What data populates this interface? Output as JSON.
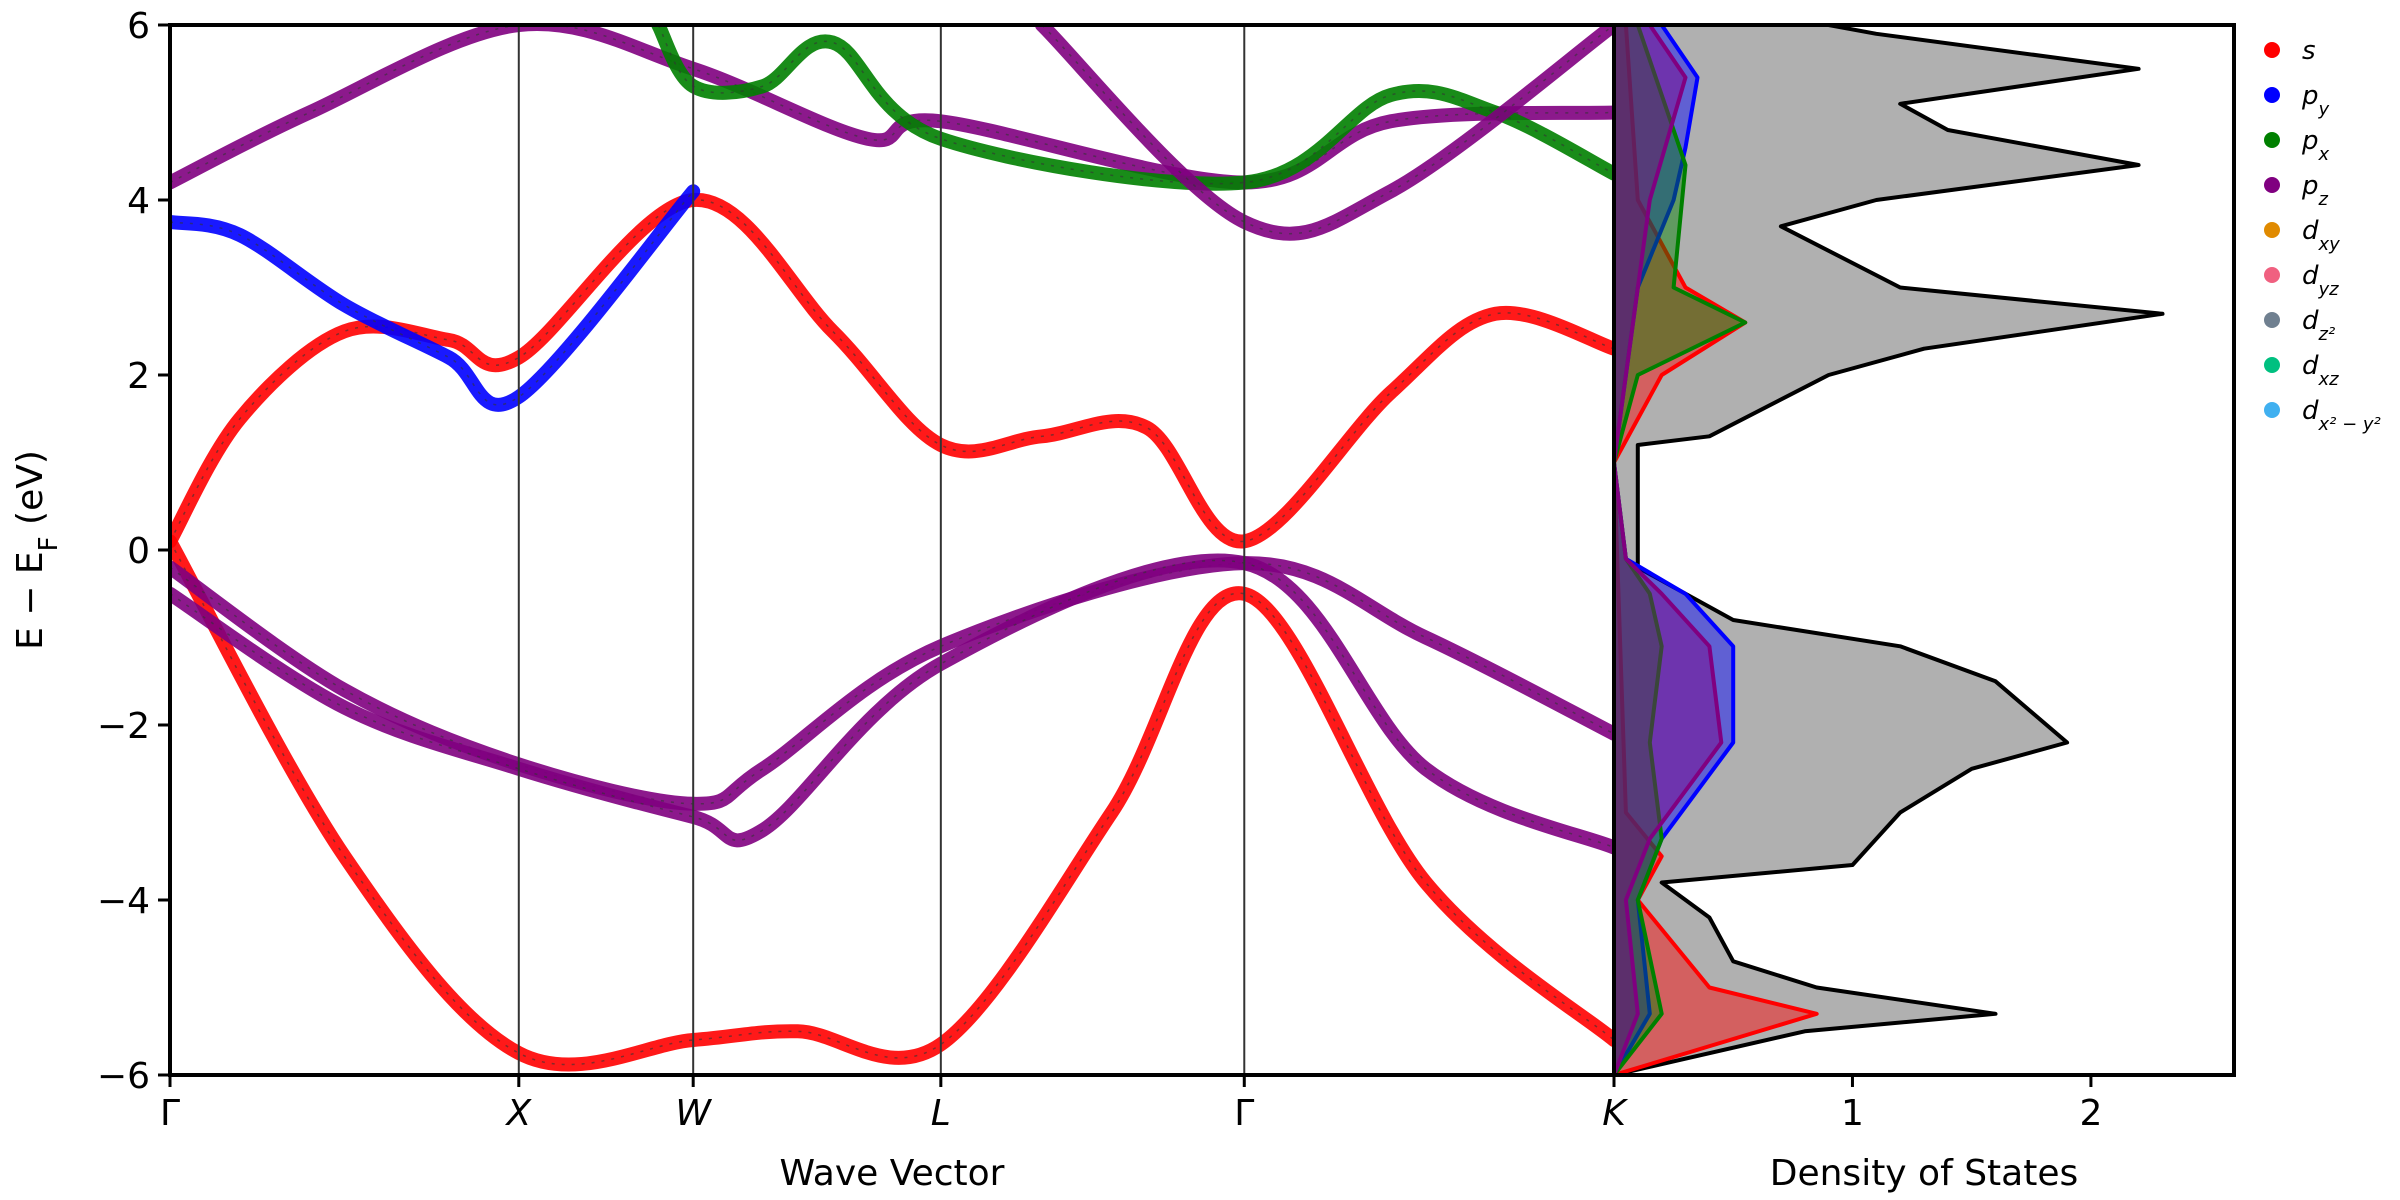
{
  "chart_data": [
    {
      "type": "line",
      "title": "",
      "xlabel": "Wave Vector",
      "ylabel": "E − E_F (eV)",
      "ylim": [
        -6,
        6
      ],
      "yticks": [
        "−6",
        "−4",
        "−2",
        "0",
        "2",
        "4",
        "6"
      ],
      "ytick_values": [
        -6,
        -4,
        -2,
        0,
        2,
        4,
        6
      ],
      "kpath_labels": [
        "Γ",
        "X",
        "W",
        "L",
        "Γ",
        "K"
      ],
      "kpath_positions": [
        0,
        1,
        1.5,
        2.21,
        3.08,
        4.14
      ],
      "xlim": [
        0,
        4.14
      ],
      "grid": false,
      "bands": [
        {
          "name": "",
          "color": "#ff0000",
          "x": [
            0,
            0.5,
            1.0,
            1.5,
            1.8,
            2.21,
            2.7,
            3.08,
            3.6,
            4.14
          ],
          "y": [
            0.1,
            -3.5,
            -5.75,
            -5.6,
            -5.5,
            -5.65,
            -3.0,
            -0.5,
            -3.8,
            -5.6
          ]
        },
        {
          "name": "",
          "color": "#ff0000",
          "x": [
            0,
            0.2,
            0.5,
            0.8,
            1.0,
            1.5,
            1.9,
            2.21,
            2.5,
            2.8,
            3.08,
            3.5,
            3.8,
            4.14
          ],
          "y": [
            0.1,
            1.5,
            2.5,
            2.4,
            2.2,
            4.0,
            2.5,
            1.2,
            1.3,
            1.4,
            0.1,
            1.8,
            2.7,
            2.3
          ]
        },
        {
          "name": "",
          "color": "#0000ff",
          "x": [
            0,
            0.2,
            0.5,
            0.8,
            1.0,
            1.5
          ],
          "y": [
            3.75,
            3.6,
            2.8,
            2.2,
            1.75,
            4.1
          ]
        },
        {
          "name": "",
          "color": "#800080",
          "x": [
            0,
            0.5,
            1.0,
            1.5,
            1.7,
            2.21,
            3.08,
            3.6,
            4.14
          ],
          "y": [
            -0.2,
            -1.6,
            -2.45,
            -2.9,
            -2.5,
            -1.1,
            -0.15,
            -1.0,
            -2.1
          ]
        },
        {
          "name": "",
          "color": "#800080",
          "x": [
            0,
            0.5,
            1.0,
            1.5,
            1.7,
            2.21,
            3.08,
            3.6,
            4.14
          ],
          "y": [
            -0.5,
            -1.8,
            -2.5,
            -3.05,
            -3.2,
            -1.3,
            -0.15,
            -2.5,
            -3.4
          ]
        },
        {
          "name": "",
          "color": "#800080",
          "x": [
            0,
            0.4,
            1.0,
            1.5,
            2.0,
            2.21,
            3.08,
            3.5,
            4.14
          ],
          "y": [
            4.2,
            5.0,
            6.0,
            5.5,
            4.7,
            4.9,
            4.2,
            4.9,
            5.0
          ]
        },
        {
          "name": "",
          "color": "#008000",
          "x": [
            1.4,
            1.5,
            1.7,
            1.9,
            2.21,
            3.08,
            3.5,
            3.8,
            4.14
          ],
          "y": [
            6.0,
            5.3,
            5.3,
            5.8,
            4.7,
            4.2,
            5.2,
            5.0,
            4.3
          ]
        },
        {
          "name": "",
          "color": "#800080",
          "x": [
            2.5,
            3.08,
            3.5,
            4.14
          ],
          "y": [
            6.0,
            3.75,
            4.1,
            6.0
          ]
        }
      ]
    },
    {
      "type": "area",
      "title": "",
      "xlabel": "Density of States",
      "ylabel": "",
      "xticks": [
        "1",
        "2"
      ],
      "xtick_values": [
        1,
        2
      ],
      "xlim": [
        0,
        2.6
      ],
      "ylim": [
        -6,
        6
      ],
      "total": {
        "color": "#000000",
        "fill": "#b0b0b0",
        "y": [
          -6,
          -5.5,
          -5.3,
          -5.0,
          -4.7,
          -4.2,
          -3.8,
          -3.6,
          -3.3,
          -3.0,
          -2.5,
          -2.2,
          -1.5,
          -1.1,
          -0.8,
          -0.2,
          1.2,
          1.3,
          2.0,
          2.3,
          2.7,
          3.0,
          3.7,
          4.0,
          4.4,
          4.8,
          5.1,
          5.5,
          5.9,
          6.0
        ],
        "x": [
          0,
          0.8,
          1.6,
          0.85,
          0.5,
          0.4,
          0.2,
          1.0,
          1.1,
          1.2,
          1.5,
          1.9,
          1.6,
          1.2,
          0.5,
          0.1,
          0.1,
          0.4,
          0.9,
          1.3,
          2.3,
          1.2,
          0.7,
          1.1,
          2.2,
          1.4,
          1.2,
          2.2,
          1.1,
          0.9
        ]
      },
      "series": [
        {
          "name": "s",
          "color": "#ff0000",
          "y": [
            -6,
            -5.3,
            -5.0,
            -4.0,
            -3.5,
            -3.0,
            1.0,
            2.0,
            2.6,
            3.0,
            4.0,
            6.0
          ],
          "x": [
            0,
            0.85,
            0.4,
            0.1,
            0.2,
            0.05,
            0,
            0.2,
            0.55,
            0.3,
            0.1,
            0.05
          ]
        },
        {
          "name": "p_y",
          "color": "#0000ff",
          "y": [
            -6,
            -5.3,
            -4.0,
            -3.3,
            -2.2,
            -1.1,
            -0.5,
            -0.1,
            1.0,
            3.0,
            4.0,
            4.6,
            5.4,
            6.0
          ],
          "x": [
            0,
            0.15,
            0.1,
            0.2,
            0.5,
            0.5,
            0.3,
            0.05,
            0,
            0.1,
            0.25,
            0.3,
            0.35,
            0.2
          ]
        },
        {
          "name": "p_x",
          "color": "#008000",
          "y": [
            -6,
            -5.3,
            -4.0,
            -3.3,
            -2.2,
            -1.1,
            -0.5,
            -0.1,
            1.0,
            2.0,
            2.6,
            3.0,
            4.4,
            5.2,
            6.0
          ],
          "x": [
            0,
            0.2,
            0.1,
            0.2,
            0.15,
            0.2,
            0.15,
            0.05,
            0,
            0.1,
            0.55,
            0.25,
            0.3,
            0.2,
            0.1
          ]
        },
        {
          "name": "p_z",
          "color": "#800080",
          "y": [
            -6,
            -5.3,
            -4.0,
            -3.3,
            -2.2,
            -1.1,
            -0.5,
            -0.1,
            1.0,
            4.0,
            5.4,
            6.0
          ],
          "x": [
            0,
            0.1,
            0.05,
            0.15,
            0.45,
            0.4,
            0.2,
            0.05,
            0,
            0.15,
            0.3,
            0.15
          ]
        }
      ]
    }
  ],
  "legend": {
    "placement": "right",
    "items": [
      {
        "base": "s",
        "sub": "",
        "sup": "",
        "color": "#ff0000"
      },
      {
        "base": "p",
        "sub": "y",
        "sup": "",
        "color": "#0000ff"
      },
      {
        "base": "p",
        "sub": "x",
        "sup": "",
        "color": "#008000"
      },
      {
        "base": "p",
        "sub": "z",
        "sup": "",
        "color": "#800080"
      },
      {
        "base": "d",
        "sub": "xy",
        "sup": "",
        "color": "#e08a00"
      },
      {
        "base": "d",
        "sub": "yz",
        "sup": "",
        "color": "#f06080"
      },
      {
        "base": "d",
        "sub": "z²",
        "sup": "",
        "color": "#708090"
      },
      {
        "base": "d",
        "sub": "xz",
        "sup": "",
        "color": "#00c080"
      },
      {
        "base": "d",
        "sub": "x² − y²",
        "sup": "",
        "color": "#40b0f0"
      }
    ]
  }
}
